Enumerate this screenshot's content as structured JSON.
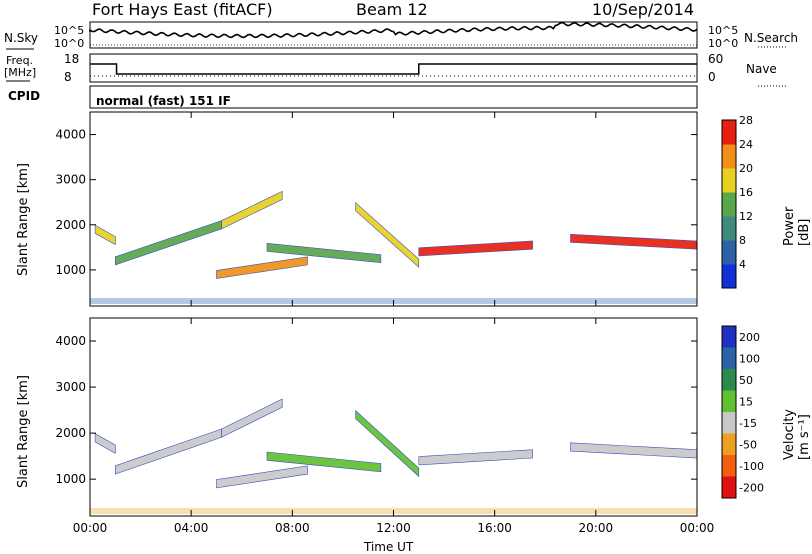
{
  "header": {
    "radar": "Fort Hays East (fitACF)",
    "beam": "Beam 12",
    "date": "10/Sep/2014"
  },
  "panels": {
    "nsky": {
      "label": "N.Sky",
      "ticks": [
        "10^5",
        "10^0"
      ],
      "right_ticks": [
        "10^5",
        "10^0"
      ],
      "right_label": "N.Search"
    },
    "freq": {
      "label_line1": "Freq.",
      "label_line2": "[MHz]",
      "ticks": [
        "18",
        "8"
      ],
      "right_ticks": [
        "60",
        "0"
      ],
      "right_label": "Nave"
    },
    "cpid": {
      "label": "CPID",
      "mode": "normal (fast) 151 IF"
    }
  },
  "chart_data": [
    {
      "type": "heatmap",
      "title": "",
      "ylabel": "Slant Range [km]",
      "xlabel": "",
      "x_ticks": [
        "00:00",
        "04:00",
        "08:00",
        "12:00",
        "16:00",
        "20:00",
        "00:00"
      ],
      "y_ticks": [
        "1000",
        "2000",
        "3000",
        "4000"
      ],
      "ylim": [
        200,
        4500
      ],
      "xlim_hours": [
        0,
        24
      ],
      "colorbar": {
        "label": "Power [dB]",
        "ticks": [
          "4",
          "8",
          "12",
          "16",
          "20",
          "24",
          "28"
        ],
        "colors": [
          "#1030d8",
          "#2c62a8",
          "#3f8a7c",
          "#5aa64a",
          "#e8d020",
          "#f09018",
          "#e82010"
        ]
      },
      "echo_bands": [
        {
          "t_start": 0.2,
          "t_end": 1.0,
          "r_start": 1900,
          "r_end": 1650,
          "power": 18
        },
        {
          "t_start": 1.0,
          "t_end": 5.2,
          "r_start": 1200,
          "r_end": 2000,
          "power": 16
        },
        {
          "t_start": 5.2,
          "t_end": 7.6,
          "r_start": 2000,
          "r_end": 2650,
          "power": 20
        },
        {
          "t_start": 5.0,
          "t_end": 8.6,
          "r_start": 900,
          "r_end": 1200,
          "power": 22
        },
        {
          "t_start": 7.0,
          "t_end": 11.5,
          "r_start": 1500,
          "r_end": 1250,
          "power": 14
        },
        {
          "t_start": 10.5,
          "t_end": 13.0,
          "r_start": 2400,
          "r_end": 1150,
          "power": 20
        },
        {
          "t_start": 13.0,
          "t_end": 17.5,
          "r_start": 1400,
          "r_end": 1550,
          "power": 28
        },
        {
          "t_start": 19.0,
          "t_end": 24.0,
          "r_start": 1700,
          "r_end": 1550,
          "power": 26
        }
      ]
    },
    {
      "type": "heatmap",
      "title": "",
      "ylabel": "Slant Range [km]",
      "xlabel": "Time UT",
      "x_ticks": [
        "00:00",
        "04:00",
        "08:00",
        "12:00",
        "16:00",
        "20:00",
        "00:00"
      ],
      "y_ticks": [
        "1000",
        "2000",
        "3000",
        "4000"
      ],
      "ylim": [
        200,
        4500
      ],
      "xlim_hours": [
        0,
        24
      ],
      "colorbar": {
        "label": "Velocity [m s⁻¹]",
        "ticks": [
          "200",
          "100",
          "50",
          "15",
          "-15",
          "-50",
          "-100",
          "-200"
        ],
        "colors": [
          "#2030c0",
          "#2c62a8",
          "#2e8a4c",
          "#60c030",
          "#c8c8c8",
          "#f0a020",
          "#f06010",
          "#e01010"
        ]
      },
      "echo_bands": [
        {
          "t_start": 0.2,
          "t_end": 1.0,
          "r_start": 1900,
          "r_end": 1650,
          "velocity": 0
        },
        {
          "t_start": 1.0,
          "t_end": 5.2,
          "r_start": 1200,
          "r_end": 2000,
          "velocity": 0
        },
        {
          "t_start": 5.2,
          "t_end": 7.6,
          "r_start": 2000,
          "r_end": 2650,
          "velocity": 0
        },
        {
          "t_start": 5.0,
          "t_end": 8.6,
          "r_start": 900,
          "r_end": 1200,
          "velocity": 0
        },
        {
          "t_start": 7.0,
          "t_end": 11.5,
          "r_start": 1500,
          "r_end": 1250,
          "velocity": 30
        },
        {
          "t_start": 10.5,
          "t_end": 13.0,
          "r_start": 2400,
          "r_end": 1150,
          "velocity": 30
        },
        {
          "t_start": 13.0,
          "t_end": 17.5,
          "r_start": 1400,
          "r_end": 1550,
          "velocity": 0
        },
        {
          "t_start": 19.0,
          "t_end": 24.0,
          "r_start": 1700,
          "r_end": 1550,
          "velocity": 0
        }
      ]
    }
  ]
}
